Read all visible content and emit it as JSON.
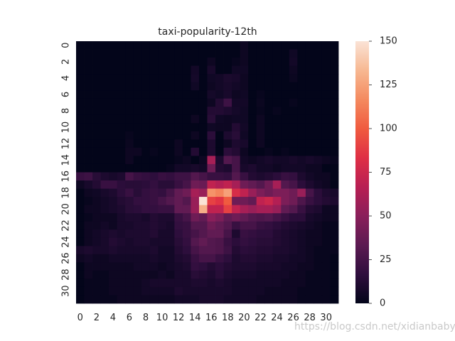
{
  "watermark": "https://blog.csdn.net/xidianbaby",
  "colormap": [
    "#03051a",
    "#2f0e3d",
    "#5c1a52",
    "#8a1f5a",
    "#b81f53",
    "#df2f45",
    "#f05b3f",
    "#f48a5f",
    "#f7b892",
    "#fae3d6"
  ],
  "chart_data": {
    "type": "heatmap",
    "title": "taxi-popularity-12th",
    "xlabel": "",
    "ylabel": "",
    "rows": 32,
    "cols": 32,
    "x_tick_labels": [
      "0",
      "2",
      "4",
      "6",
      "8",
      "10",
      "12",
      "14",
      "16",
      "18",
      "20",
      "22",
      "24",
      "26",
      "28",
      "30"
    ],
    "y_tick_labels": [
      "0",
      "2",
      "4",
      "6",
      "8",
      "10",
      "12",
      "14",
      "16",
      "18",
      "20",
      "22",
      "24",
      "26",
      "28",
      "30"
    ],
    "colorbar": {
      "min": 0,
      "max": 150,
      "ticks": [
        0,
        25,
        50,
        75,
        100,
        125,
        150
      ]
    },
    "values": [
      [
        0,
        0,
        0,
        0,
        0,
        0,
        0,
        0,
        0,
        0,
        0,
        0,
        0,
        0,
        0,
        0,
        0,
        0,
        0,
        0,
        4,
        0,
        0,
        0,
        0,
        0,
        0,
        0,
        0,
        0,
        0,
        0
      ],
      [
        0,
        0,
        0,
        0,
        0,
        0,
        0,
        0,
        0,
        0,
        0,
        0,
        0,
        0,
        0,
        0,
        0,
        0,
        0,
        0,
        4,
        0,
        0,
        0,
        0,
        0,
        5,
        0,
        0,
        0,
        0,
        0
      ],
      [
        0,
        0,
        0,
        0,
        0,
        0,
        0,
        0,
        0,
        0,
        0,
        0,
        0,
        0,
        0,
        0,
        4,
        0,
        0,
        2,
        4,
        0,
        0,
        0,
        0,
        0,
        6,
        0,
        0,
        0,
        0,
        0
      ],
      [
        0,
        0,
        0,
        0,
        0,
        0,
        0,
        0,
        0,
        0,
        0,
        0,
        0,
        0,
        6,
        0,
        8,
        0,
        0,
        5,
        5,
        0,
        0,
        0,
        0,
        0,
        4,
        0,
        0,
        0,
        0,
        0
      ],
      [
        0,
        0,
        0,
        0,
        0,
        0,
        0,
        0,
        0,
        0,
        0,
        0,
        0,
        0,
        7,
        0,
        5,
        6,
        9,
        8,
        4,
        0,
        0,
        0,
        0,
        0,
        3,
        0,
        0,
        0,
        0,
        0
      ],
      [
        0,
        0,
        0,
        0,
        0,
        0,
        0,
        0,
        0,
        0,
        0,
        0,
        0,
        0,
        5,
        0,
        4,
        6,
        8,
        6,
        4,
        0,
        0,
        0,
        0,
        0,
        0,
        0,
        0,
        0,
        0,
        0
      ],
      [
        0,
        0,
        0,
        0,
        0,
        0,
        0,
        0,
        0,
        0,
        0,
        0,
        0,
        0,
        0,
        0,
        7,
        5,
        8,
        4,
        5,
        0,
        2,
        0,
        0,
        0,
        0,
        0,
        0,
        0,
        0,
        0
      ],
      [
        0,
        0,
        0,
        0,
        0,
        0,
        0,
        0,
        0,
        0,
        0,
        0,
        0,
        0,
        0,
        0,
        4,
        12,
        22,
        6,
        6,
        0,
        3,
        0,
        0,
        0,
        2,
        0,
        0,
        0,
        0,
        0
      ],
      [
        0,
        0,
        0,
        0,
        0,
        0,
        0,
        0,
        0,
        0,
        0,
        0,
        0,
        0,
        0,
        0,
        12,
        12,
        10,
        7,
        5,
        0,
        2,
        0,
        2,
        0,
        0,
        0,
        0,
        0,
        0,
        0
      ],
      [
        0,
        0,
        0,
        0,
        0,
        0,
        0,
        0,
        0,
        0,
        0,
        0,
        0,
        0,
        4,
        0,
        14,
        5,
        4,
        5,
        5,
        0,
        4,
        0,
        0,
        0,
        0,
        0,
        0,
        0,
        0,
        0
      ],
      [
        0,
        0,
        0,
        0,
        0,
        0,
        0,
        0,
        0,
        0,
        0,
        0,
        0,
        0,
        0,
        0,
        5,
        4,
        4,
        12,
        6,
        0,
        4,
        0,
        0,
        0,
        0,
        0,
        0,
        0,
        0,
        0
      ],
      [
        0,
        0,
        0,
        0,
        0,
        0,
        2,
        0,
        0,
        0,
        0,
        0,
        0,
        0,
        4,
        0,
        15,
        0,
        10,
        14,
        5,
        0,
        4,
        0,
        0,
        0,
        0,
        0,
        0,
        0,
        0,
        0
      ],
      [
        0,
        0,
        0,
        0,
        0,
        0,
        3,
        0,
        0,
        0,
        0,
        0,
        4,
        0,
        0,
        0,
        10,
        0,
        4,
        10,
        8,
        0,
        4,
        0,
        0,
        0,
        0,
        0,
        0,
        0,
        0,
        0
      ],
      [
        0,
        0,
        0,
        0,
        0,
        0,
        4,
        4,
        0,
        2,
        0,
        0,
        4,
        0,
        12,
        0,
        10,
        0,
        15,
        12,
        4,
        0,
        0,
        2,
        0,
        2,
        0,
        0,
        0,
        0,
        0,
        0
      ],
      [
        0,
        0,
        0,
        0,
        0,
        0,
        4,
        0,
        0,
        0,
        0,
        0,
        2,
        4,
        0,
        4,
        60,
        10,
        30,
        25,
        6,
        4,
        6,
        8,
        6,
        6,
        8,
        6,
        8,
        6,
        4,
        2
      ],
      [
        0,
        0,
        0,
        0,
        0,
        0,
        0,
        0,
        0,
        0,
        0,
        2,
        6,
        6,
        8,
        6,
        40,
        12,
        10,
        25,
        8,
        10,
        6,
        6,
        4,
        6,
        6,
        6,
        4,
        4,
        0,
        0
      ],
      [
        20,
        22,
        14,
        10,
        8,
        10,
        25,
        20,
        18,
        16,
        20,
        18,
        22,
        22,
        30,
        25,
        20,
        20,
        18,
        30,
        20,
        12,
        10,
        12,
        15,
        20,
        18,
        10,
        6,
        4,
        4,
        0
      ],
      [
        4,
        8,
        12,
        20,
        20,
        15,
        14,
        14,
        15,
        18,
        14,
        14,
        20,
        25,
        40,
        38,
        70,
        65,
        70,
        60,
        40,
        35,
        30,
        40,
        60,
        30,
        25,
        15,
        10,
        6,
        4,
        0
      ],
      [
        0,
        4,
        5,
        8,
        10,
        15,
        20,
        14,
        18,
        20,
        18,
        25,
        35,
        40,
        60,
        55,
        120,
        115,
        125,
        80,
        70,
        55,
        45,
        40,
        45,
        45,
        40,
        55,
        25,
        15,
        10,
        8
      ],
      [
        0,
        2,
        4,
        6,
        8,
        12,
        14,
        18,
        18,
        20,
        25,
        30,
        35,
        30,
        55,
        150,
        90,
        85,
        100,
        40,
        40,
        35,
        70,
        75,
        65,
        45,
        40,
        28,
        20,
        15,
        12,
        10
      ],
      [
        0,
        4,
        4,
        6,
        8,
        10,
        14,
        15,
        18,
        18,
        20,
        20,
        35,
        35,
        55,
        130,
        70,
        70,
        90,
        70,
        60,
        55,
        60,
        60,
        55,
        35,
        30,
        20,
        12,
        10,
        4,
        4
      ],
      [
        0,
        2,
        4,
        4,
        4,
        8,
        10,
        10,
        8,
        12,
        10,
        10,
        20,
        25,
        40,
        35,
        50,
        45,
        35,
        40,
        35,
        30,
        28,
        30,
        25,
        20,
        15,
        15,
        8,
        6,
        4,
        4
      ],
      [
        0,
        4,
        4,
        6,
        4,
        8,
        8,
        10,
        10,
        12,
        10,
        8,
        18,
        20,
        30,
        30,
        40,
        35,
        30,
        20,
        25,
        25,
        20,
        18,
        15,
        12,
        10,
        8,
        6,
        4,
        2,
        2
      ],
      [
        0,
        4,
        6,
        8,
        10,
        8,
        10,
        10,
        10,
        12,
        8,
        8,
        16,
        20,
        25,
        30,
        35,
        35,
        25,
        10,
        20,
        18,
        16,
        16,
        12,
        10,
        8,
        6,
        4,
        4,
        2,
        2
      ],
      [
        0,
        4,
        6,
        8,
        12,
        10,
        8,
        10,
        10,
        8,
        8,
        8,
        14,
        18,
        30,
        35,
        30,
        28,
        20,
        15,
        18,
        16,
        14,
        14,
        12,
        10,
        8,
        6,
        4,
        4,
        2,
        2
      ],
      [
        8,
        10,
        8,
        8,
        10,
        8,
        8,
        8,
        8,
        10,
        6,
        6,
        12,
        16,
        25,
        30,
        30,
        28,
        22,
        12,
        15,
        14,
        12,
        12,
        10,
        10,
        8,
        6,
        4,
        2,
        2,
        2
      ],
      [
        4,
        6,
        4,
        4,
        6,
        6,
        6,
        6,
        6,
        8,
        6,
        6,
        10,
        12,
        20,
        25,
        25,
        20,
        16,
        10,
        12,
        12,
        10,
        10,
        8,
        8,
        6,
        6,
        4,
        2,
        2,
        0
      ],
      [
        0,
        4,
        4,
        4,
        4,
        4,
        4,
        6,
        6,
        6,
        4,
        6,
        8,
        10,
        18,
        16,
        12,
        15,
        12,
        10,
        10,
        10,
        8,
        8,
        8,
        6,
        6,
        4,
        4,
        2,
        2,
        0
      ],
      [
        0,
        4,
        2,
        2,
        4,
        4,
        4,
        4,
        4,
        4,
        6,
        4,
        8,
        8,
        14,
        12,
        10,
        14,
        10,
        8,
        8,
        8,
        6,
        6,
        6,
        6,
        4,
        4,
        2,
        2,
        2,
        0
      ],
      [
        0,
        2,
        2,
        2,
        4,
        4,
        4,
        4,
        6,
        8,
        8,
        8,
        8,
        8,
        10,
        10,
        8,
        10,
        8,
        6,
        6,
        6,
        6,
        6,
        6,
        4,
        4,
        4,
        2,
        2,
        2,
        0
      ],
      [
        0,
        2,
        2,
        2,
        4,
        4,
        4,
        4,
        6,
        6,
        6,
        6,
        10,
        8,
        8,
        8,
        8,
        8,
        8,
        6,
        6,
        6,
        6,
        4,
        4,
        4,
        4,
        2,
        2,
        2,
        2,
        0
      ],
      [
        0,
        2,
        2,
        2,
        2,
        4,
        4,
        4,
        4,
        4,
        4,
        4,
        6,
        6,
        6,
        8,
        8,
        8,
        6,
        6,
        6,
        6,
        4,
        4,
        4,
        4,
        4,
        2,
        2,
        2,
        2,
        0
      ]
    ]
  }
}
